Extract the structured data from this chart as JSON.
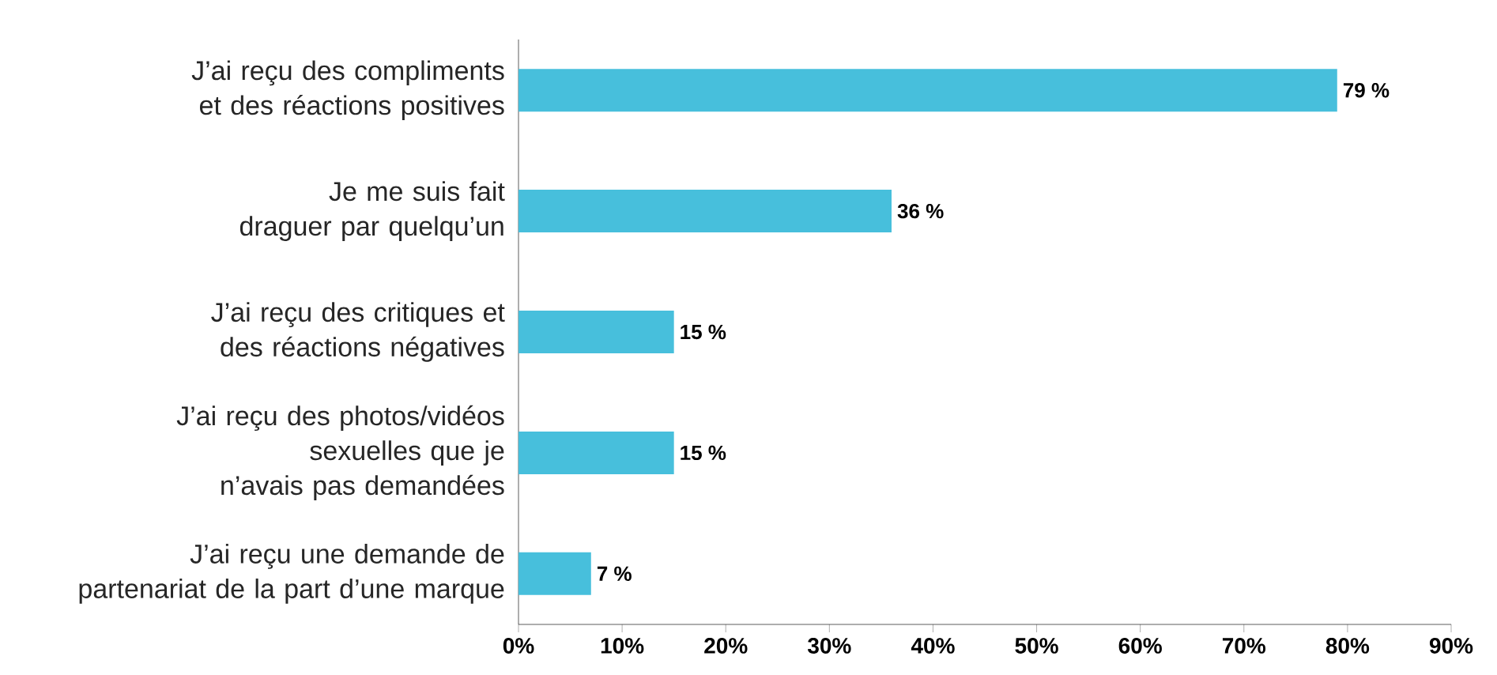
{
  "chart_data": {
    "type": "bar",
    "orientation": "horizontal",
    "categories": [
      "J’ai reçu des compliments et des réactions positives",
      "Je me suis fait draguer par quelqu’un",
      "J’ai reçu des critiques et des réactions négatives",
      "J’ai reçu des photos/vidéos sexuelles que je n’avais pas demandées",
      "J’ai reçu une demande de partenariat de la part d’une marque"
    ],
    "values": [
      79,
      36,
      15,
      15,
      7
    ],
    "value_labels": [
      "79 %",
      "36 %",
      "15 %",
      "15 %",
      "7 %"
    ],
    "color": "#47bfdc",
    "xlim": [
      0,
      90
    ],
    "xticks": [
      {
        "value": 0,
        "label": "0%"
      },
      {
        "value": 10,
        "label": "10%"
      },
      {
        "value": 20,
        "label": "20%"
      },
      {
        "value": 30,
        "label": "30%"
      },
      {
        "value": 40,
        "label": "40%"
      },
      {
        "value": 50,
        "label": "50%"
      },
      {
        "value": 60,
        "label": "60%"
      },
      {
        "value": 70,
        "label": "70%"
      },
      {
        "value": 80,
        "label": "80%"
      },
      {
        "value": 90,
        "label": "90%"
      }
    ],
    "grid": false
  }
}
